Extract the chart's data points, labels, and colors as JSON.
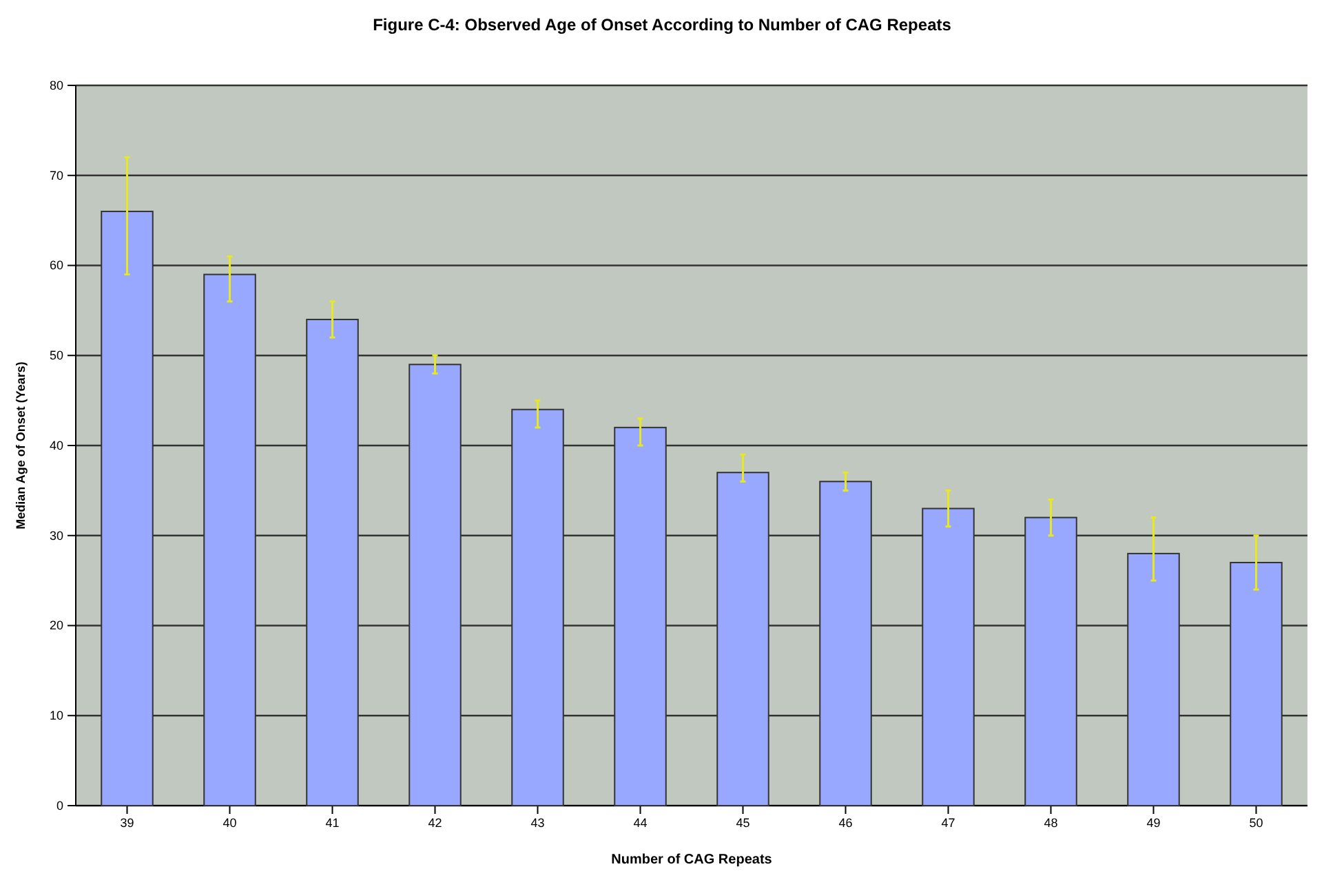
{
  "chart_data": {
    "type": "bar",
    "title": "Figure C-4: Observed Age of Onset According to Number of CAG Repeats",
    "xlabel": "Number of CAG Repeats",
    "ylabel": "Median Age of Onset (Years)",
    "categories": [
      "39",
      "40",
      "41",
      "42",
      "43",
      "44",
      "45",
      "46",
      "47",
      "48",
      "49",
      "50"
    ],
    "values": [
      66,
      59,
      54,
      49,
      44,
      42,
      37,
      36,
      33,
      32,
      28,
      27
    ],
    "errors": [
      [
        59,
        72
      ],
      [
        56,
        61
      ],
      [
        52,
        56
      ],
      [
        48,
        50
      ],
      [
        42,
        45
      ],
      [
        40,
        43
      ],
      [
        36,
        39
      ],
      [
        35,
        37
      ],
      [
        31,
        35
      ],
      [
        30,
        34
      ],
      [
        25,
        32
      ],
      [
        24,
        30
      ]
    ],
    "color": "#99a8ff",
    "ylim": [
      0,
      80
    ],
    "yticks": [
      0,
      10,
      20,
      30,
      40,
      50,
      60,
      70,
      80
    ],
    "grid": "y"
  }
}
